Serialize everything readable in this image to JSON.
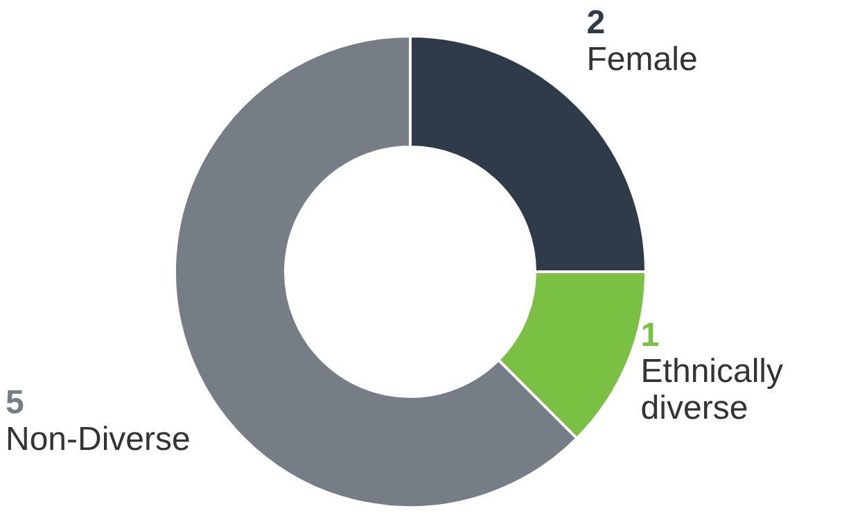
{
  "chart_data": {
    "type": "donut",
    "categories": [
      "Female",
      "Ethnically diverse",
      "Non-Diverse"
    ],
    "values": [
      2,
      1,
      5
    ],
    "colors": [
      "#2f3b48",
      "#7ac143",
      "#767d85"
    ],
    "data_labels": true
  }
}
